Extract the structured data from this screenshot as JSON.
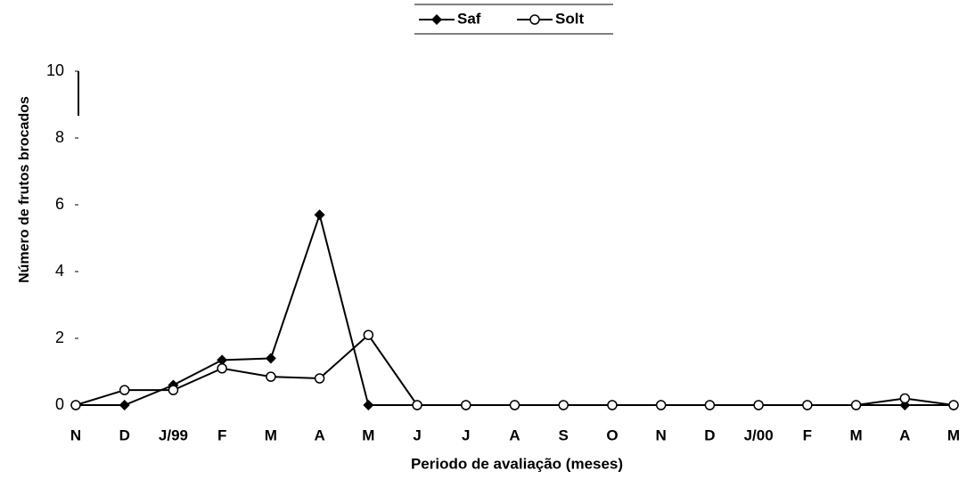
{
  "chart_data": {
    "type": "line",
    "x_label": "Periodo de avaliação (meses)",
    "y_label": "Número de frutos brocados",
    "categories": [
      "N",
      "D",
      "J/99",
      "F",
      "M",
      "A",
      "M",
      "J",
      "J",
      "A",
      "S",
      "O",
      "N",
      "D",
      "J/00",
      "F",
      "M",
      "A",
      "M"
    ],
    "series": [
      {
        "name": "Saf",
        "color": "#000000",
        "marker": "diamond",
        "values": [
          0,
          0,
          0.6,
          1.35,
          1.4,
          5.7,
          0,
          0,
          0,
          0,
          0,
          0,
          0,
          0,
          0,
          0,
          0,
          0,
          0
        ]
      },
      {
        "name": "Solt",
        "color": "#000000",
        "marker": "circle",
        "values": [
          0,
          0.45,
          0.45,
          1.1,
          0.85,
          0.8,
          2.1,
          0,
          0,
          0,
          0,
          0,
          0,
          0,
          0,
          0,
          0,
          0.2,
          0
        ]
      }
    ],
    "ylim": [
      0,
      10
    ],
    "yticks": [
      0,
      2,
      4,
      6,
      8,
      10
    ],
    "legend": "top"
  }
}
